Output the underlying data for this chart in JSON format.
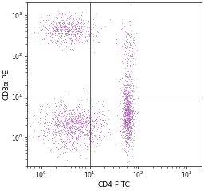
{
  "title": "",
  "xlabel": "CD4-FITC",
  "ylabel": "CD8α-PE",
  "xlim": [
    0.5,
    2000
  ],
  "ylim": [
    0.2,
    2000
  ],
  "xline": 10,
  "yline": 10,
  "dot_color_light": "#cc88cc",
  "dot_color_mid": "#9933aa",
  "dot_color_dark": "#550077",
  "dot_alpha": 0.35,
  "dot_size": 0.5,
  "figsize": [
    2.56,
    2.39
  ],
  "dpi": 100,
  "seed": 42,
  "populations": {
    "q2_cd8pos_cd4neg": {
      "n": 600,
      "x_log_mean": 0.55,
      "x_log_std": 0.28,
      "y_log_mean": 2.62,
      "y_log_std": 0.18
    },
    "q4_cd4pos_cd8neg": {
      "n": 700,
      "x_log_mean": 1.78,
      "x_log_std": 0.06,
      "y_log_mean": 0.45,
      "y_log_std": 0.35
    },
    "q3_double_neg": {
      "n": 1000,
      "x_log_mean": 0.65,
      "x_log_std": 0.32,
      "y_log_mean": 0.3,
      "y_log_std": 0.28
    },
    "q1_double_pos_sparse": {
      "n": 120,
      "x_log_mean": 1.78,
      "x_log_std": 0.08,
      "y_log_mean": 2.3,
      "y_log_std": 0.35
    },
    "q4_cd4pos_trail": {
      "n": 200,
      "x_log_mean": 1.78,
      "x_log_std": 0.07,
      "y_log_mean": 1.1,
      "y_log_std": 0.4
    }
  }
}
